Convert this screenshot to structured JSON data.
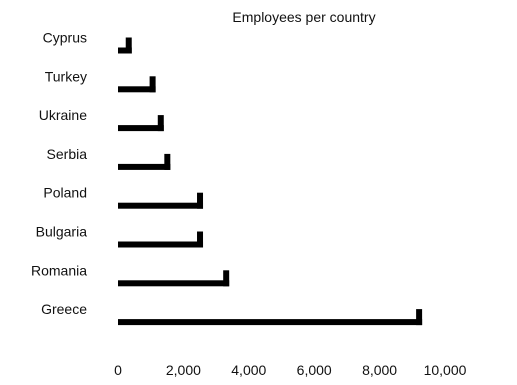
{
  "chart_data": {
    "type": "bar",
    "orientation": "horizontal",
    "title": "Employees per country",
    "xlabel": "",
    "ylabel": "",
    "categories": [
      "Cyprus",
      "Turkey",
      "Ukraine",
      "Serbia",
      "Poland",
      "Bulgaria",
      "Romania",
      "Greece"
    ],
    "values": [
      420,
      1150,
      1400,
      1600,
      2600,
      2600,
      3400,
      9300
    ],
    "xlim": [
      0,
      10000
    ],
    "xticks": [
      0,
      2000,
      4000,
      6000,
      8000,
      10000
    ],
    "xtick_labels": [
      "0",
      "2,000",
      "4,000",
      "6,000",
      "8,000",
      "10,000"
    ],
    "grid": false,
    "legend": "none",
    "bar_color": "#000000"
  }
}
